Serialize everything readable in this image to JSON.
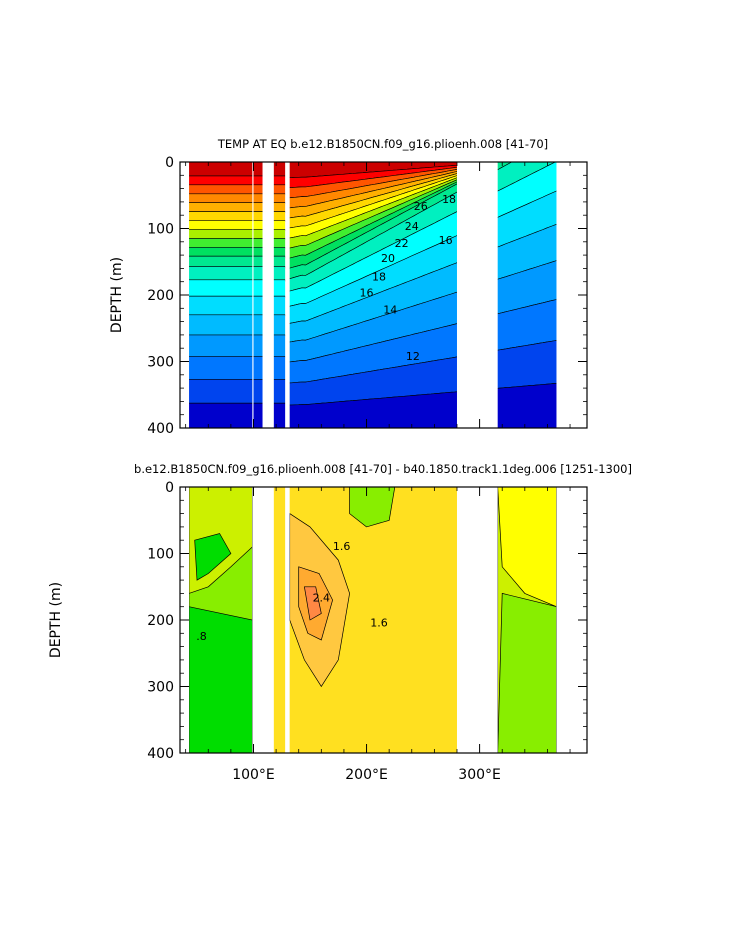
{
  "chart_data": [
    {
      "type": "heatmap",
      "subtype": "filled-contour depth-longitude section",
      "title": "TEMP AT EQ  b.e12.B1850CN.f09_g16.plioenh.008  [41-70]",
      "ylabel": "DEPTH (m)",
      "xlabel": "",
      "xlim": [
        35,
        395
      ],
      "ylim": [
        400,
        0
      ],
      "y_inverted": true,
      "y_ticks": [
        0,
        100,
        200,
        300,
        400
      ],
      "x_ticks": [
        100,
        200,
        300
      ],
      "x_tick_labels": [
        "",
        "",
        ""
      ],
      "ocean_segments": [
        [
          43,
          99
        ],
        [
          100,
          108
        ],
        [
          118,
          128
        ],
        [
          132,
          280
        ],
        [
          316,
          368
        ]
      ],
      "contour_labels": [
        {
          "text": "26",
          "x": 248,
          "y": 72
        },
        {
          "text": "24",
          "x": 240,
          "y": 102
        },
        {
          "text": "22",
          "x": 231,
          "y": 128
        },
        {
          "text": "20",
          "x": 219,
          "y": 150
        },
        {
          "text": "18",
          "x": 211,
          "y": 178
        },
        {
          "text": "16",
          "x": 200,
          "y": 202
        },
        {
          "text": "14",
          "x": 221,
          "y": 228
        },
        {
          "text": "12",
          "x": 241,
          "y": 298
        },
        {
          "text": "18",
          "x": 273,
          "y": 62
        },
        {
          "text": "16",
          "x": 270,
          "y": 123
        }
      ],
      "color_scale": [
        "#0000cc",
        "#0044ee",
        "#0077ff",
        "#0099ff",
        "#00bbff",
        "#00ddff",
        "#00ffff",
        "#00f0c0",
        "#00e890",
        "#00e060",
        "#40ee30",
        "#aaf000",
        "#ffff00",
        "#ffd800",
        "#ffb000",
        "#ff8800",
        "#ff5500",
        "#ff0000",
        "#cc0000"
      ]
    },
    {
      "type": "heatmap",
      "subtype": "filled-contour depth-longitude section (difference)",
      "title": "b.e12.B1850CN.f09_g16.plioenh.008  [41-70]  -  b40.1850.track1.1deg.006  [1251-1300]",
      "ylabel": "DEPTH (m)",
      "xlabel": "",
      "xlim": [
        35,
        395
      ],
      "ylim": [
        400,
        0
      ],
      "y_inverted": true,
      "y_ticks": [
        0,
        100,
        200,
        300,
        400
      ],
      "x_ticks": [
        100,
        200,
        300
      ],
      "x_tick_labels": [
        "100°E",
        "200°E",
        "300°E"
      ],
      "ocean_segments": [
        [
          43,
          99
        ],
        [
          118,
          128
        ],
        [
          132,
          280
        ],
        [
          316,
          368
        ]
      ],
      "contour_labels": [
        {
          "text": "1.6",
          "x": 178,
          "y": 95
        },
        {
          "text": "2.4",
          "x": 160,
          "y": 172
        },
        {
          "text": "1.6",
          "x": 211,
          "y": 210
        },
        {
          "text": ".8",
          "x": 54,
          "y": 230
        }
      ],
      "color_scale": [
        "#00dd00",
        "#88ee00",
        "#ccf000",
        "#ffff00",
        "#ffe020",
        "#ffc840",
        "#ffaa30",
        "#ff8844"
      ]
    }
  ]
}
